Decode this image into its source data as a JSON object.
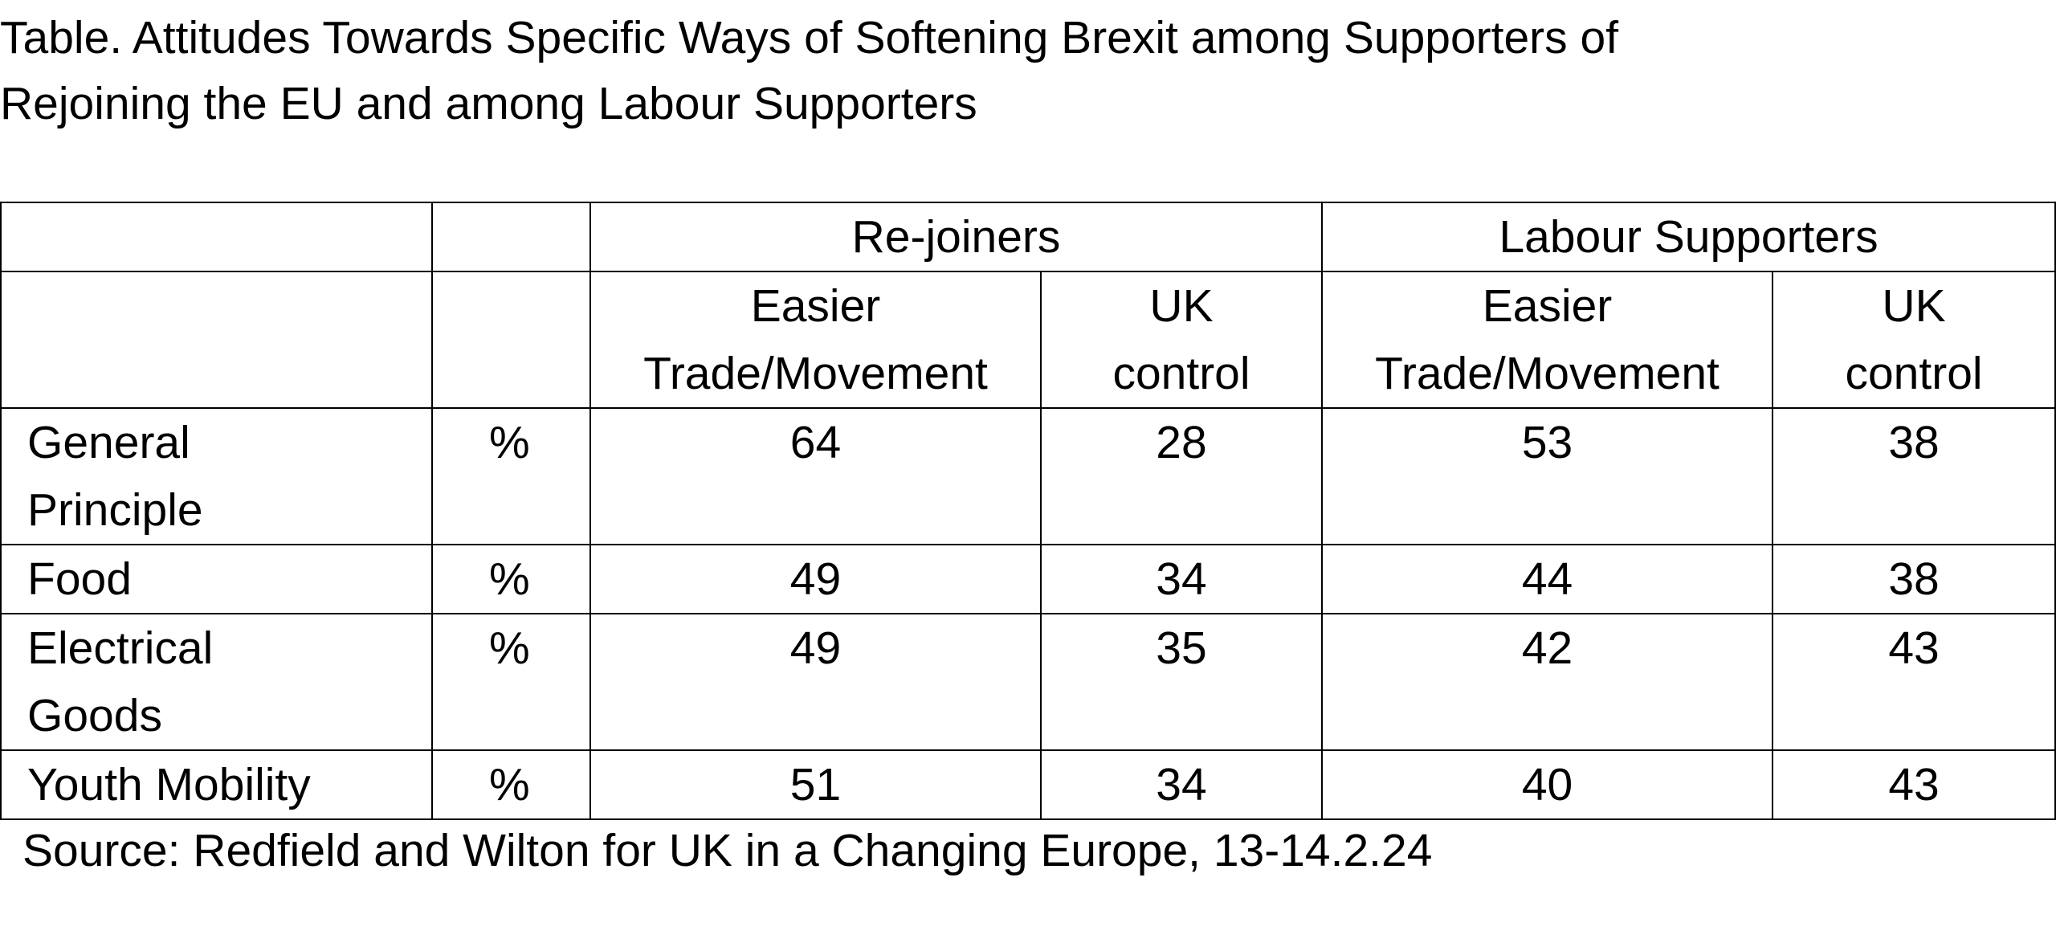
{
  "title_lines": [
    "Table. Attitudes Towards Specific Ways of Softening Brexit among Supporters of",
    "Rejoining the EU and among Labour Supporters"
  ],
  "chart_data": {
    "type": "table",
    "groups": [
      "Re-joiners",
      "Labour Supporters"
    ],
    "columns": [
      {
        "group": "Re-joiners",
        "label_lines": [
          "Easier",
          "Trade/Movement"
        ]
      },
      {
        "group": "Re-joiners",
        "label_lines": [
          "UK",
          "control"
        ]
      },
      {
        "group": "Labour Supporters",
        "label_lines": [
          "Easier",
          "Trade/Movement"
        ]
      },
      {
        "group": "Labour Supporters",
        "label_lines": [
          "UK",
          "control"
        ]
      }
    ],
    "rows": [
      {
        "label_lines": [
          "General",
          "Principle"
        ],
        "unit": "%",
        "values": [
          "64",
          "28",
          "53",
          "38"
        ]
      },
      {
        "label_lines": [
          "Food"
        ],
        "unit": "%",
        "values": [
          "49",
          "34",
          "44",
          "38"
        ]
      },
      {
        "label_lines": [
          "Electrical",
          "Goods"
        ],
        "unit": "%",
        "values": [
          "49",
          "35",
          "42",
          "43"
        ]
      },
      {
        "label_lines": [
          "Youth Mobility"
        ],
        "unit": "%",
        "values": [
          "51",
          "34",
          "40",
          "43"
        ]
      }
    ]
  },
  "source": "Source: Redfield and Wilton for UK in a Changing Europe, 13-14.2.24"
}
